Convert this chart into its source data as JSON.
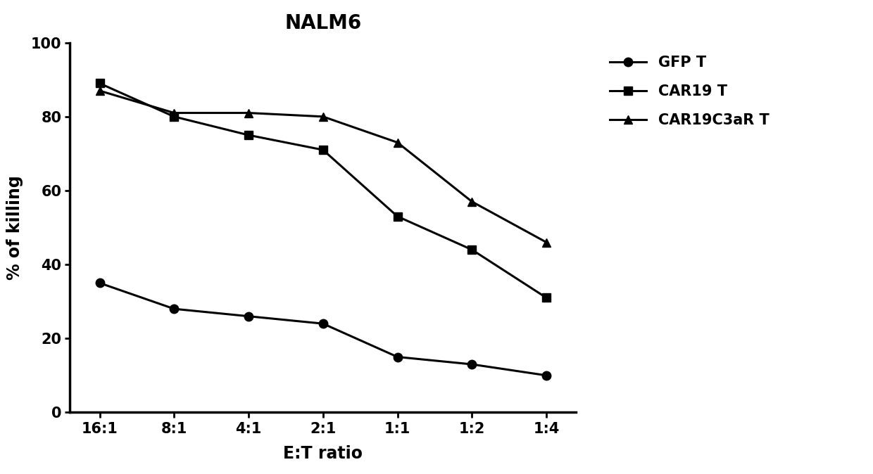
{
  "title": "NALM6",
  "xlabel": "E:T ratio",
  "ylabel": "% of killing",
  "x_labels": [
    "16:1",
    "8:1",
    "4:1",
    "2:1",
    "1:1",
    "1:2",
    "1:4"
  ],
  "series": [
    {
      "label": "GFP T",
      "values": [
        35,
        28,
        26,
        24,
        15,
        13,
        10
      ],
      "color": "#000000",
      "marker": "o",
      "markersize": 9,
      "linewidth": 2.2
    },
    {
      "label": "CAR19 T",
      "values": [
        89,
        80,
        75,
        71,
        53,
        44,
        31
      ],
      "color": "#000000",
      "marker": "s",
      "markersize": 9,
      "linewidth": 2.2
    },
    {
      "label": "CAR19C3aR T",
      "values": [
        87,
        81,
        81,
        80,
        73,
        57,
        46
      ],
      "color": "#000000",
      "marker": "^",
      "markersize": 9,
      "linewidth": 2.2
    }
  ],
  "ylim": [
    0,
    100
  ],
  "yticks": [
    0,
    20,
    40,
    60,
    80,
    100
  ],
  "title_fontsize": 20,
  "label_fontsize": 17,
  "tick_fontsize": 15,
  "legend_fontsize": 15,
  "background_color": "#ffffff"
}
